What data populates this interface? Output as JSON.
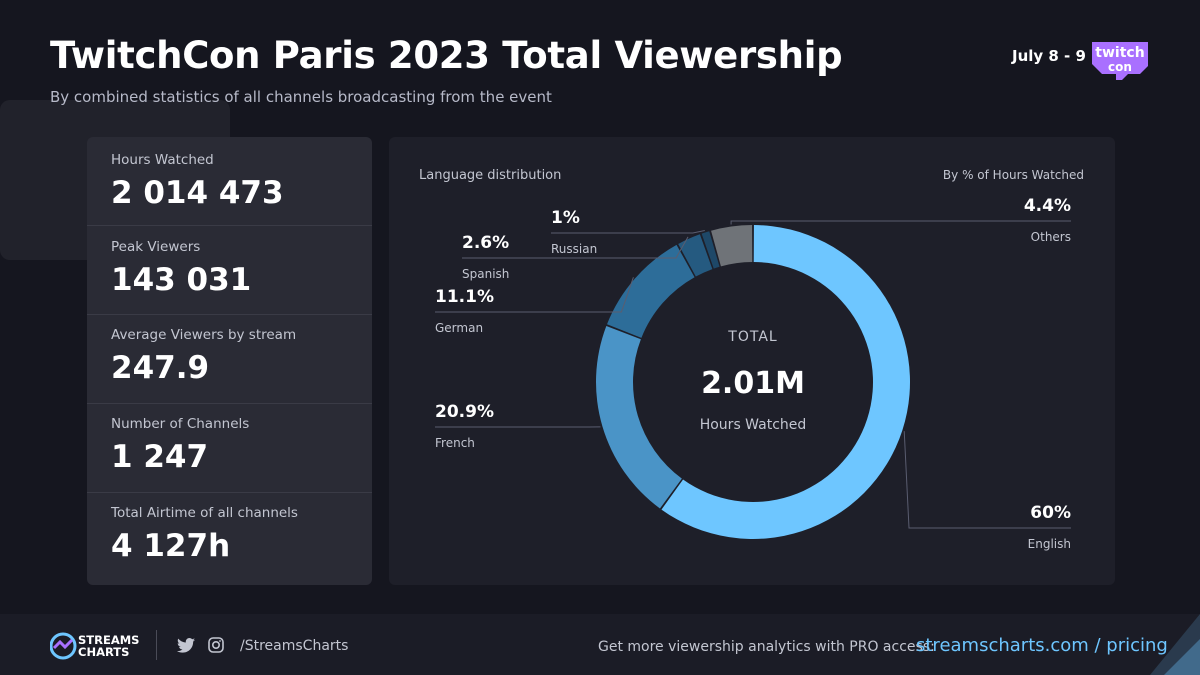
{
  "header": {
    "title": "TwitchCon Paris 2023 Total Viewership",
    "subtitle": "By combined statistics of all channels broadcasting from the event",
    "dates": "July 8 - 9",
    "logo_text": [
      "twitch",
      "con"
    ]
  },
  "stats": [
    {
      "label": "Hours Watched",
      "value": "2 014 473"
    },
    {
      "label": "Peak Viewers",
      "value": "143 031"
    },
    {
      "label": "Average Viewers by stream",
      "value": "247.9"
    },
    {
      "label": "Number of Channels",
      "value": "1 247"
    },
    {
      "label": "Total Airtime of all channels",
      "value": "4 127h"
    }
  ],
  "chart_data": {
    "type": "pie",
    "variant": "donut",
    "title": "Language distribution",
    "subtitle": "By % of Hours Watched",
    "center": {
      "label": "TOTAL",
      "value": "2.01M",
      "unit": "Hours Watched"
    },
    "start_angle_deg": 0,
    "direction": "clockwise",
    "slices": [
      {
        "name": "English",
        "value": 60,
        "label": "60%",
        "color": "#6ec6ff"
      },
      {
        "name": "French",
        "value": 20.9,
        "label": "20.9%",
        "color": "#4a94c7"
      },
      {
        "name": "German",
        "value": 11.1,
        "label": "11.1%",
        "color": "#2d6d99"
      },
      {
        "name": "Spanish",
        "value": 2.6,
        "label": "2.6%",
        "color": "#255a80"
      },
      {
        "name": "Russian",
        "value": 1,
        "label": "1%",
        "color": "#1e4868"
      },
      {
        "name": "Others",
        "value": 4.4,
        "label": "4.4%",
        "color": "#6f7378"
      }
    ]
  },
  "footer": {
    "brand": [
      "STREAMS",
      "CHARTS"
    ],
    "social_icons": [
      "twitter-icon",
      "instagram-icon"
    ],
    "handle": "/StreamsCharts",
    "cta": "Get more viewership analytics with PRO access:",
    "link": "streamscharts.com / pricing"
  },
  "colors": {
    "background": "#15161f",
    "panel": "#2a2b35",
    "chart_panel": "#1e1f29",
    "accent": "#6ec6ff",
    "twitch_purple": "#a970ff"
  }
}
